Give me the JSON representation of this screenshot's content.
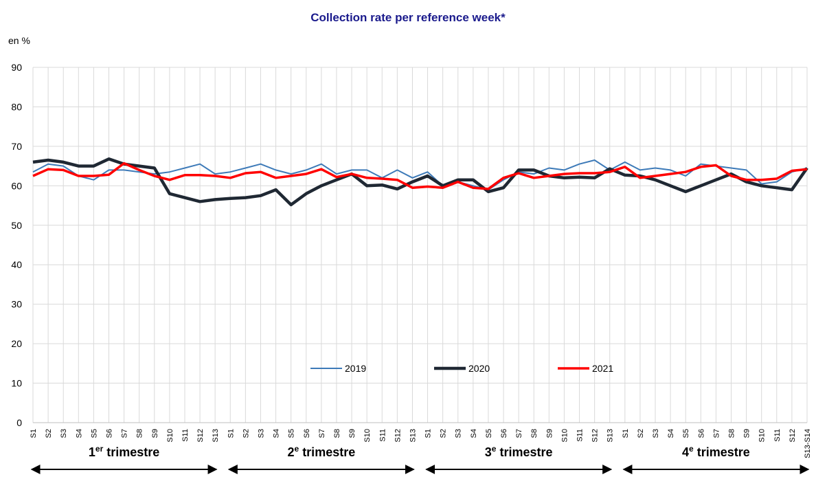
{
  "chart_data": {
    "type": "line",
    "title": "Collection rate per reference week*",
    "y_label": "en %",
    "categories": [
      "S1",
      "S2",
      "S3",
      "S4",
      "S5",
      "S6",
      "S7",
      "S8",
      "S9",
      "S10",
      "S11",
      "S12",
      "S13",
      "S1",
      "S2",
      "S3",
      "S4",
      "S5",
      "S6",
      "S7",
      "S8",
      "S9",
      "S10",
      "S11",
      "S12",
      "S13",
      "S1",
      "S2",
      "S3",
      "S4",
      "S5",
      "S6",
      "S7",
      "S8",
      "S9",
      "S10",
      "S11",
      "S12",
      "S13",
      "S1",
      "S2",
      "S3",
      "S4",
      "S5",
      "S6",
      "S7",
      "S8",
      "S9",
      "S10",
      "S11",
      "S12",
      "S13-S14"
    ],
    "quarters": [
      {
        "number": "1",
        "suffix": "er",
        "word": "trimestre"
      },
      {
        "number": "2",
        "suffix": "e",
        "word": "trimestre"
      },
      {
        "number": "3",
        "suffix": "e",
        "word": "trimestre"
      },
      {
        "number": "4",
        "suffix": "e",
        "word": "trimestre"
      }
    ],
    "ylim": [
      0,
      90
    ],
    "yticks": [
      0,
      10,
      20,
      30,
      40,
      50,
      60,
      70,
      80,
      90
    ],
    "grid": true,
    "series": [
      {
        "name": "2019",
        "color": "#3d7ab8",
        "width": 2,
        "values": [
          63.5,
          65.5,
          65,
          62.5,
          61.5,
          64,
          64,
          63.5,
          63,
          63.5,
          64.5,
          65.5,
          63,
          63.5,
          64.5,
          65.5,
          64,
          63,
          64,
          65.5,
          63,
          64,
          64,
          62,
          64,
          62,
          63.5,
          60,
          61,
          60,
          59,
          61.5,
          63.5,
          63,
          64.5,
          64,
          65.5,
          66.5,
          64,
          66,
          64,
          64.5,
          64,
          62.5,
          65.5,
          65,
          64.5,
          64,
          60.5,
          61,
          63.5,
          64.5
        ]
      },
      {
        "name": "2020",
        "color": "#1f2833",
        "width": 4.5,
        "values": [
          66,
          66.5,
          66,
          65,
          65,
          66.8,
          65.5,
          65,
          64.5,
          58,
          57,
          56,
          56.5,
          56.8,
          57,
          57.5,
          59,
          55.2,
          58,
          60,
          61.5,
          63,
          60,
          60.2,
          59.2,
          61,
          62.5,
          60,
          61.5,
          61.5,
          58.5,
          59.5,
          64,
          64,
          62.5,
          62,
          62.2,
          62,
          64.3,
          62.7,
          62.5,
          61.5,
          60,
          58.5,
          60,
          61.5,
          63,
          61,
          60,
          59.5,
          59,
          64.5
        ]
      },
      {
        "name": "2021",
        "color": "#ff0000",
        "width": 3.5,
        "values": [
          62.5,
          64.2,
          64,
          62.5,
          62.5,
          62.8,
          65.7,
          64,
          62.5,
          61.5,
          62.7,
          62.7,
          62.5,
          62,
          63.2,
          63.5,
          62,
          62.5,
          63,
          64.2,
          62.2,
          63,
          62,
          61.8,
          61.5,
          59.5,
          59.8,
          59.5,
          61,
          59.5,
          59.2,
          62,
          63.2,
          62,
          62.5,
          63,
          63.2,
          63.2,
          63.5,
          64.8,
          62,
          62.5,
          63,
          63.5,
          64.8,
          65.2,
          62.5,
          61.5,
          61.5,
          61.8,
          63.8,
          64.2
        ]
      }
    ]
  }
}
